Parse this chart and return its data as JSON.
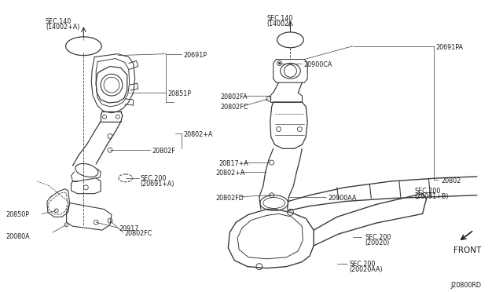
{
  "background_color": "#ffffff",
  "line_color": "#3a3a3a",
  "text_color": "#1a1a1a",
  "diagram_id": "J20800RD",
  "font_size": 5.8,
  "lc": "#3a3a3a",
  "labels": {
    "SEC140_left_1": "SEC.140",
    "SEC140_left_2": "(14002+A)",
    "20691P": "20691P",
    "20851P": "20851P",
    "20802_plus_A_left": "20802+A",
    "20802F": "20802F",
    "SEC200_20691A_1": "SEC.200",
    "SEC200_20691A_2": "(20691+A)",
    "20917": "20917",
    "20802FC_bot": "20802FC",
    "20850P": "20850P",
    "20080A": "20080A",
    "SEC140_right_1": "SEC.140",
    "SEC140_right_2": "(14002)",
    "20691PA": "20691PA",
    "20900CA": "20900CA",
    "20802FA": "20802FA",
    "20802FC_rt": "20802FC",
    "20817_plus_A": "20B17+A",
    "20802_plus_A_rt": "20802+A",
    "20802FD": "20802FD",
    "20900AA": "20900AA",
    "20802": "20802",
    "SEC200_26091B_1": "SEC.200",
    "SEC200_26091B_2": "(26091+B)",
    "SEC200_20020_1": "SEC.200",
    "SEC200_20020_2": "(20020)",
    "SEC200_20020AA_1": "SEC.200",
    "SEC200_20020AA_2": "(20020AA)",
    "FRONT": "FRONT"
  }
}
